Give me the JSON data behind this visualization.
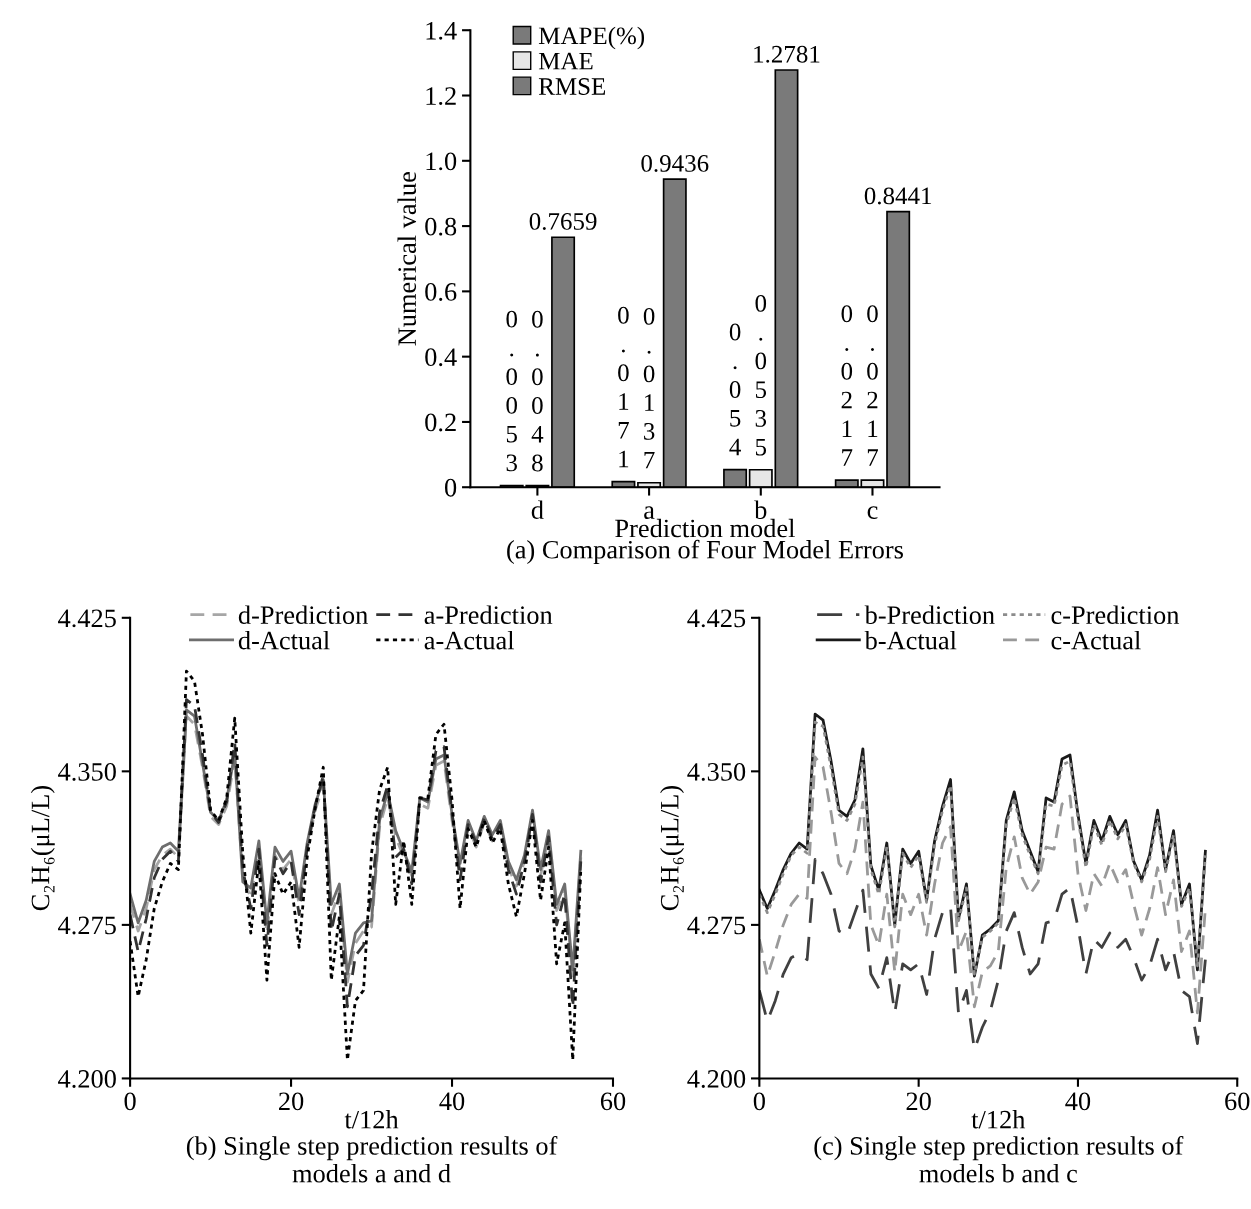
{
  "chart_data": [
    {
      "type": "bar",
      "title": "(a) Comparison of Four Model Errors",
      "xlabel": "Prediction model",
      "ylabel": "Numerical value",
      "categories": [
        "d",
        "a",
        "b",
        "c"
      ],
      "series": [
        {
          "name": "MAPE(%)",
          "color": "#7a7a7a",
          "values": [
            0.0053,
            0.0171,
            0.054,
            0.0217
          ]
        },
        {
          "name": "MAE",
          "color": "#e6e6e6",
          "values": [
            0.0048,
            0.0137,
            0.0535,
            0.0217
          ]
        },
        {
          "name": "RMSE",
          "color": "#7a7a7a",
          "values": [
            0.7659,
            0.9436,
            1.2781,
            0.8441
          ]
        }
      ],
      "ylim": [
        0,
        1.4
      ],
      "yticks": [
        0,
        0.2,
        0.4,
        0.6,
        0.8,
        {
          "value": 1,
          "label": "1.0"
        },
        1.2,
        1.4
      ],
      "data_labels": true,
      "legend": "top left",
      "grid": false
    },
    {
      "type": "line",
      "title": "(b) Single step prediction results of\nmodels a and d",
      "xlabel": "t/12h",
      "ylabel": "C₂H₆(μL/L)",
      "x": [
        0,
        1,
        2,
        3,
        4,
        5,
        6,
        7,
        8,
        9,
        10,
        11,
        12,
        13,
        14,
        15,
        16,
        17,
        18,
        19,
        20,
        21,
        22,
        23,
        24,
        25,
        26,
        27,
        28,
        29,
        30,
        31,
        32,
        33,
        34,
        35,
        36,
        37,
        38,
        39,
        40,
        41,
        42,
        43,
        44,
        45,
        46,
        47,
        48,
        49,
        50,
        51,
        52,
        53,
        54,
        55,
        56
      ],
      "series": [
        {
          "name": "d-Prediction",
          "color": "#a6a6a6",
          "line_style": "dashed",
          "values": [
            4.285,
            4.272,
            4.283,
            4.302,
            4.309,
            4.312,
            4.308,
            4.377,
            4.373,
            4.352,
            4.328,
            4.324,
            4.333,
            4.356,
            4.299,
            4.288,
            4.312,
            4.271,
            4.309,
            4.302,
            4.307,
            4.285,
            4.312,
            4.331,
            4.343,
            4.28,
            4.291,
            4.247,
            4.266,
            4.272,
            4.274,
            4.323,
            4.337,
            4.318,
            4.308,
            4.299,
            4.334,
            4.332,
            4.353,
            4.355,
            4.326,
            4.302,
            4.323,
            4.313,
            4.325,
            4.316,
            4.323,
            4.303,
            4.294,
            4.306,
            4.328,
            4.299,
            4.318,
            4.282,
            4.292,
            4.25,
            4.308
          ]
        },
        {
          "name": "d-Actual",
          "color": "#6e6e6e",
          "line_style": "solid",
          "values": [
            4.29,
            4.276,
            4.287,
            4.306,
            4.313,
            4.315,
            4.311,
            4.38,
            4.377,
            4.354,
            4.33,
            4.326,
            4.336,
            4.359,
            4.296,
            4.293,
            4.316,
            4.276,
            4.313,
            4.306,
            4.311,
            4.288,
            4.315,
            4.334,
            4.346,
            4.285,
            4.295,
            4.251,
            4.271,
            4.276,
            4.277,
            4.326,
            4.34,
            4.321,
            4.311,
            4.301,
            4.337,
            4.335,
            4.356,
            4.358,
            4.329,
            4.305,
            4.326,
            4.316,
            4.328,
            4.319,
            4.326,
            4.306,
            4.297,
            4.309,
            4.331,
            4.302,
            4.321,
            4.285,
            4.295,
            4.253,
            4.311
          ]
        },
        {
          "name": "a-Prediction",
          "color": "#333333",
          "line_style": "dashed",
          "values": [
            4.28,
            4.262,
            4.278,
            4.298,
            4.307,
            4.311,
            4.306,
            4.385,
            4.382,
            4.358,
            4.33,
            4.325,
            4.335,
            4.364,
            4.302,
            4.283,
            4.312,
            4.265,
            4.308,
            4.3,
            4.306,
            4.28,
            4.313,
            4.333,
            4.348,
            4.272,
            4.29,
            4.235,
            4.26,
            4.265,
            4.29,
            4.33,
            4.343,
            4.308,
            4.312,
            4.295,
            4.337,
            4.336,
            4.36,
            4.362,
            4.33,
            4.297,
            4.324,
            4.315,
            4.327,
            4.317,
            4.324,
            4.302,
            4.29,
            4.306,
            4.329,
            4.296,
            4.318,
            4.275,
            4.29,
            4.235,
            4.306
          ]
        },
        {
          "name": "a-Actual",
          "color": "#000000",
          "line_style": "dotted",
          "values": [
            4.267,
            4.24,
            4.258,
            4.283,
            4.296,
            4.305,
            4.302,
            4.399,
            4.394,
            4.368,
            4.331,
            4.326,
            4.337,
            4.376,
            4.31,
            4.271,
            4.306,
            4.248,
            4.3,
            4.29,
            4.296,
            4.264,
            4.308,
            4.332,
            4.352,
            4.248,
            4.279,
            4.209,
            4.238,
            4.243,
            4.31,
            4.341,
            4.352,
            4.285,
            4.316,
            4.285,
            4.337,
            4.337,
            4.368,
            4.373,
            4.336,
            4.283,
            4.322,
            4.313,
            4.326,
            4.315,
            4.322,
            4.295,
            4.279,
            4.3,
            4.326,
            4.287,
            4.313,
            4.256,
            4.276,
            4.209,
            4.302
          ]
        }
      ],
      "xlim": [
        0,
        60
      ],
      "xticks": [
        0,
        20,
        40,
        60
      ],
      "ylim": [
        4.2,
        4.425
      ],
      "yticks": [
        {
          "value": 4.2,
          "label": "4.200"
        },
        {
          "value": 4.275,
          "label": "4.275"
        },
        {
          "value": 4.35,
          "label": "4.350"
        },
        {
          "value": 4.425,
          "label": "4.425"
        }
      ],
      "legend": "top",
      "grid": false,
      "marker": "none"
    },
    {
      "type": "line",
      "title": "(c) Single step prediction results of\nmodels b and c",
      "xlabel": "t/12h",
      "ylabel": "C₂H₆(μL/L)",
      "x": [
        0,
        1,
        2,
        3,
        4,
        5,
        6,
        7,
        8,
        9,
        10,
        11,
        12,
        13,
        14,
        15,
        16,
        17,
        18,
        19,
        20,
        21,
        22,
        23,
        24,
        25,
        26,
        27,
        28,
        29,
        30,
        31,
        32,
        33,
        34,
        35,
        36,
        37,
        38,
        39,
        40,
        41,
        42,
        43,
        44,
        45,
        46,
        47,
        48,
        49,
        50,
        51,
        52,
        53,
        54,
        55,
        56
      ],
      "series": [
        {
          "name": "b-Prediction",
          "color": "#404040",
          "line_style": "longdash",
          "values": [
            4.243,
            4.228,
            4.238,
            4.251,
            4.259,
            4.261,
            4.258,
            4.307,
            4.3,
            4.29,
            4.272,
            4.27,
            4.281,
            4.292,
            4.251,
            4.244,
            4.259,
            4.232,
            4.256,
            4.253,
            4.256,
            4.241,
            4.268,
            4.281,
            4.284,
            4.232,
            4.243,
            4.214,
            4.225,
            4.233,
            4.248,
            4.272,
            4.281,
            4.264,
            4.251,
            4.256,
            4.276,
            4.277,
            4.29,
            4.293,
            4.274,
            4.251,
            4.268,
            4.264,
            4.271,
            4.264,
            4.268,
            4.259,
            4.248,
            4.255,
            4.268,
            4.253,
            4.262,
            4.243,
            4.24,
            4.217,
            4.258
          ]
        },
        {
          "name": "b-Actual",
          "color": "#1a1a1a",
          "line_style": "solid",
          "values": [
            4.292,
            4.283,
            4.292,
            4.302,
            4.31,
            4.315,
            4.312,
            4.378,
            4.375,
            4.355,
            4.331,
            4.328,
            4.336,
            4.361,
            4.304,
            4.292,
            4.315,
            4.275,
            4.312,
            4.305,
            4.311,
            4.287,
            4.316,
            4.333,
            4.346,
            4.278,
            4.295,
            4.25,
            4.27,
            4.273,
            4.277,
            4.326,
            4.34,
            4.321,
            4.311,
            4.301,
            4.337,
            4.335,
            4.356,
            4.358,
            4.329,
            4.305,
            4.326,
            4.316,
            4.328,
            4.319,
            4.326,
            4.306,
            4.297,
            4.309,
            4.331,
            4.302,
            4.321,
            4.285,
            4.295,
            4.253,
            4.311
          ]
        },
        {
          "name": "c-Prediction",
          "color": "#8c8c8c",
          "line_style": "dotted",
          "values": [
            4.29,
            4.281,
            4.29,
            4.3,
            4.309,
            4.313,
            4.31,
            4.374,
            4.372,
            4.352,
            4.329,
            4.326,
            4.334,
            4.357,
            4.302,
            4.29,
            4.313,
            4.274,
            4.31,
            4.303,
            4.309,
            4.286,
            4.314,
            4.331,
            4.343,
            4.277,
            4.293,
            4.251,
            4.269,
            4.272,
            4.276,
            4.324,
            4.337,
            4.319,
            4.309,
            4.3,
            4.334,
            4.333,
            4.353,
            4.355,
            4.327,
            4.303,
            4.324,
            4.314,
            4.326,
            4.317,
            4.324,
            4.305,
            4.296,
            4.307,
            4.328,
            4.301,
            4.319,
            4.284,
            4.293,
            4.255,
            4.309
          ]
        },
        {
          "name": "c-Actual",
          "color": "#999999",
          "line_style": "dashed",
          "values": [
            4.268,
            4.25,
            4.262,
            4.275,
            4.285,
            4.29,
            4.288,
            4.357,
            4.352,
            4.33,
            4.305,
            4.3,
            4.312,
            4.335,
            4.275,
            4.265,
            4.29,
            4.252,
            4.29,
            4.28,
            4.29,
            4.27,
            4.295,
            4.315,
            4.323,
            4.262,
            4.272,
            4.235,
            4.252,
            4.255,
            4.262,
            4.303,
            4.318,
            4.298,
            4.29,
            4.296,
            4.313,
            4.312,
            4.334,
            4.338,
            4.3,
            4.282,
            4.3,
            4.294,
            4.305,
            4.296,
            4.302,
            4.285,
            4.27,
            4.283,
            4.303,
            4.28,
            4.297,
            4.262,
            4.272,
            4.232,
            4.283
          ]
        }
      ],
      "xlim": [
        0,
        60
      ],
      "xticks": [
        0,
        20,
        40,
        60
      ],
      "ylim": [
        4.2,
        4.425
      ],
      "yticks": [
        {
          "value": 4.2,
          "label": "4.200"
        },
        {
          "value": 4.275,
          "label": "4.275"
        },
        {
          "value": 4.35,
          "label": "4.350"
        },
        {
          "value": 4.425,
          "label": "4.425"
        }
      ],
      "legend": "top",
      "grid": false,
      "marker": "none"
    }
  ]
}
